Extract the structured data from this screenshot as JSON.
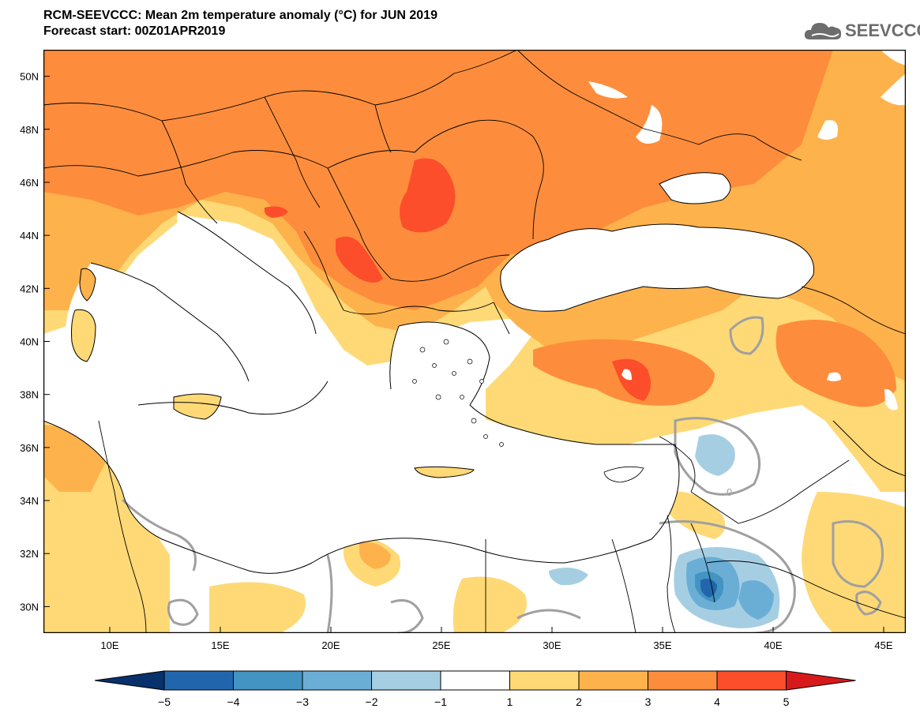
{
  "header": {
    "title_line1": "RCM-SEEVCCC: Mean 2m temperature anomaly (°C) for JUN 2019",
    "title_line2": "Forecast start: 00Z01APR2019"
  },
  "logo": {
    "text": "SEEVCCC",
    "icon": "cloud-icon"
  },
  "map": {
    "lon_range": [
      7,
      46
    ],
    "lat_range": [
      29,
      51
    ],
    "lon_ticks": [
      "10E",
      "15E",
      "20E",
      "25E",
      "30E",
      "35E",
      "40E",
      "45E"
    ],
    "lon_tick_values": [
      10,
      15,
      20,
      25,
      30,
      35,
      40,
      45
    ],
    "lat_ticks": [
      "50N",
      "48N",
      "46N",
      "44N",
      "42N",
      "40N",
      "38N",
      "36N",
      "34N",
      "32N",
      "30N"
    ],
    "lat_tick_values": [
      50,
      48,
      46,
      44,
      42,
      40,
      38,
      36,
      34,
      32,
      30
    ],
    "contour_label": "0"
  },
  "colorbar": {
    "labels": [
      "−5",
      "−4",
      "−3",
      "−2",
      "−1",
      "1",
      "2",
      "3",
      "4",
      "5"
    ],
    "colors": [
      "#08306b",
      "#2166ac",
      "#4393c3",
      "#6aaed6",
      "#a6cee3",
      "#ffffff",
      "#fed976",
      "#feb24c",
      "#fd8d3c",
      "#fc4e2a",
      "#e31a1c"
    ],
    "under_color": "#08306b",
    "over_color": "#d7191c"
  },
  "colors": {
    "land_c1": "#fed976",
    "land_c2": "#feb24c",
    "land_c3": "#fd8d3c",
    "land_c4": "#fc4e2a",
    "cold_1": "#a6cee3",
    "cold_2": "#6aaed6",
    "cold_3": "#4393c3",
    "cold_4": "#2166ac",
    "contour_zero": "#a0a0a0"
  }
}
